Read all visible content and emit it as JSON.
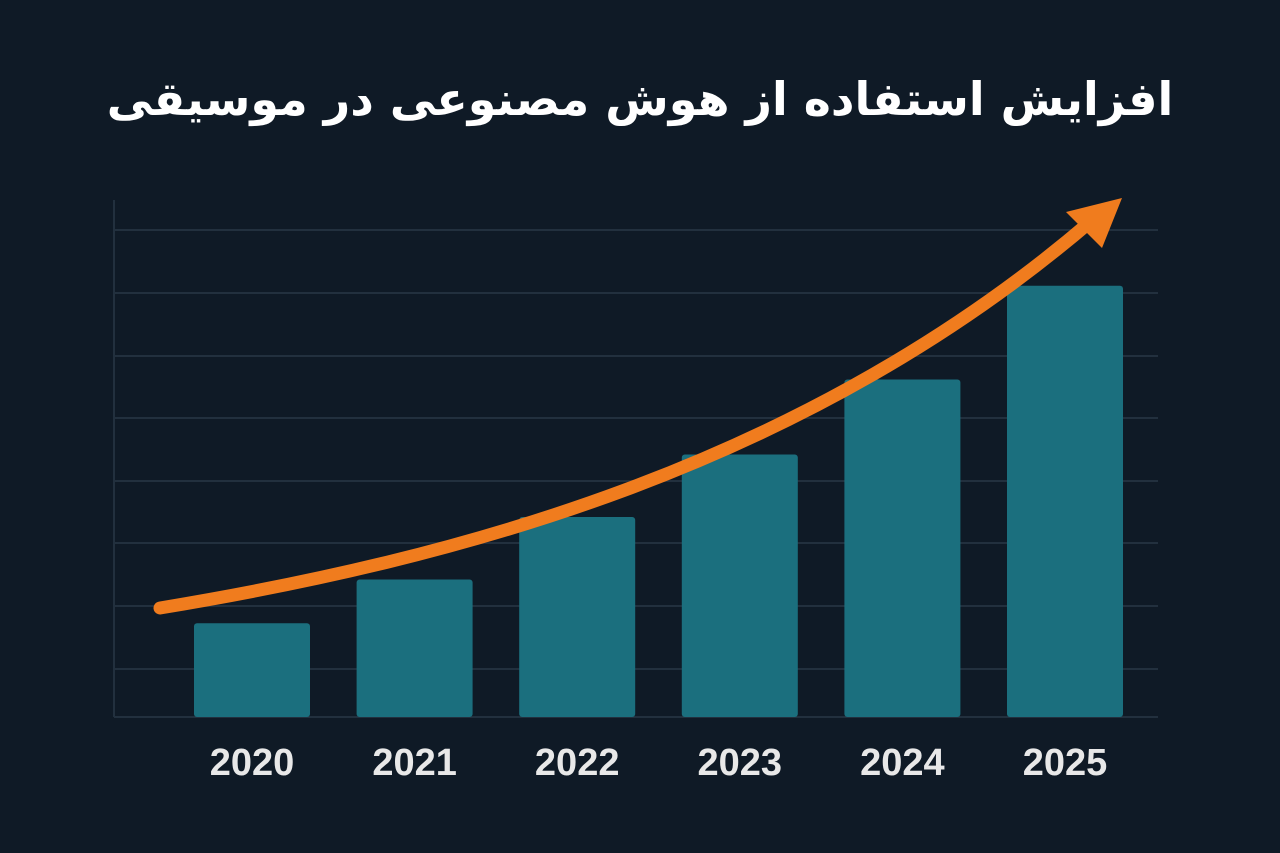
{
  "chart_data": {
    "type": "bar",
    "title": "افزایش استفاده از هوش مصنوعی در موسیقی",
    "categories": [
      "2020",
      "2021",
      "2022",
      "2023",
      "2024",
      "2025"
    ],
    "values": [
      1.5,
      2.2,
      3.2,
      4.2,
      5.4,
      6.9
    ],
    "xlabel": "",
    "ylabel": "",
    "ylim": [
      0,
      8
    ],
    "grid": true,
    "trend_arrow": "increasing",
    "colors": {
      "background": "#0f1a26",
      "bar": "#1b6f7e",
      "arrow": "#f07c1e",
      "grid": "#22303e",
      "text": "#e8e8e8"
    }
  }
}
